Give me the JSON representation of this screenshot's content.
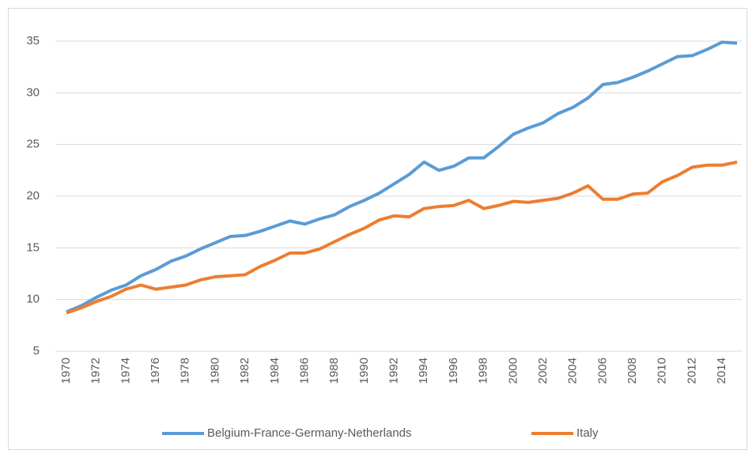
{
  "chart_data": {
    "type": "line",
    "x": [
      1970,
      1971,
      1972,
      1973,
      1974,
      1975,
      1976,
      1977,
      1978,
      1979,
      1980,
      1981,
      1982,
      1983,
      1984,
      1985,
      1986,
      1987,
      1988,
      1989,
      1990,
      1991,
      1992,
      1993,
      1994,
      1995,
      1996,
      1997,
      1998,
      1999,
      2000,
      2001,
      2002,
      2003,
      2004,
      2005,
      2006,
      2007,
      2008,
      2009,
      2010,
      2011,
      2012,
      2013,
      2014,
      2015
    ],
    "xlim": [
      1970,
      2015
    ],
    "xticks": [
      1970,
      1972,
      1974,
      1976,
      1978,
      1980,
      1982,
      1984,
      1986,
      1988,
      1990,
      1992,
      1994,
      1996,
      1998,
      2000,
      2002,
      2004,
      2006,
      2008,
      2010,
      2012,
      2014
    ],
    "ylim": [
      5,
      35
    ],
    "yticks": [
      5,
      10,
      15,
      20,
      25,
      30,
      35
    ],
    "grid": true,
    "legend": "bottom",
    "series": [
      {
        "name": "Belgium-France-Germany-Netherlands",
        "color": "#5b9bd5",
        "values": [
          8.8,
          9.4,
          10.2,
          10.9,
          11.4,
          12.3,
          12.9,
          13.7,
          14.2,
          14.9,
          15.5,
          16.1,
          16.2,
          16.6,
          17.1,
          17.6,
          17.3,
          17.8,
          18.2,
          19.0,
          19.6,
          20.3,
          21.2,
          22.1,
          23.3,
          22.5,
          22.9,
          23.7,
          23.7,
          24.8,
          26.0,
          26.6,
          27.1,
          28.0,
          28.6,
          29.5,
          30.8,
          31.0,
          31.5,
          32.1,
          32.8,
          33.5,
          33.6,
          34.2,
          34.9,
          34.8
        ]
      },
      {
        "name": "Italy",
        "color": "#ed7d31",
        "values": [
          8.7,
          9.2,
          9.8,
          10.3,
          11.0,
          11.4,
          11.0,
          11.2,
          11.4,
          11.9,
          12.2,
          12.3,
          12.4,
          13.2,
          13.8,
          14.5,
          14.5,
          14.9,
          15.6,
          16.3,
          16.9,
          17.7,
          18.1,
          18.0,
          18.8,
          19.0,
          19.1,
          19.6,
          18.8,
          19.1,
          19.5,
          19.4,
          19.6,
          19.8,
          20.3,
          21.0,
          19.7,
          19.7,
          20.2,
          20.3,
          21.4,
          22.0,
          22.8,
          23.0,
          23.0,
          23.3
        ]
      }
    ]
  }
}
